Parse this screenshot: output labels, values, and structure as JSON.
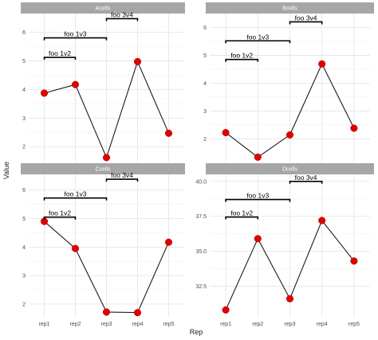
{
  "axes": {
    "xlabel": "Rep",
    "ylabel": "Value"
  },
  "chart_data": {
    "type": "line",
    "categories": [
      "rep1",
      "rep2",
      "rep3",
      "rep4",
      "rep5"
    ],
    "colors": {
      "point": "#e00000",
      "line": "#1a1a1a",
      "strip": "#a6a6a6",
      "bracket": "#000000"
    },
    "grid": true,
    "panels": [
      {
        "title": "Acells",
        "values": [
          3.87,
          4.17,
          1.62,
          4.97,
          2.47
        ],
        "ylim": [
          1.45,
          6.65
        ],
        "yticks": [
          2,
          3,
          4,
          5,
          6
        ],
        "ytick_labels": [
          "2",
          "3",
          "4",
          "5",
          "6"
        ],
        "brackets": [
          {
            "label": "foo 1v2",
            "from": "rep1",
            "to": "rep2",
            "y": 5.12
          },
          {
            "label": "foo 1v3",
            "from": "rep1",
            "to": "rep3",
            "y": 5.8
          },
          {
            "label": "foo 3v4",
            "from": "rep3",
            "to": "rep4",
            "y": 6.47
          }
        ]
      },
      {
        "title": "Bcells",
        "values": [
          2.22,
          1.34,
          2.14,
          4.69,
          2.38
        ],
        "ylim": [
          1.15,
          6.5
        ],
        "yticks": [
          2,
          3,
          4,
          5,
          6
        ],
        "ytick_labels": [
          "2",
          "3",
          "4",
          "5",
          "6"
        ],
        "brackets": [
          {
            "label": "foo 1v2",
            "from": "rep1",
            "to": "rep2",
            "y": 4.85
          },
          {
            "label": "foo 1v3",
            "from": "rep1",
            "to": "rep3",
            "y": 5.52
          },
          {
            "label": "foo 3v4",
            "from": "rep3",
            "to": "rep4",
            "y": 6.2
          }
        ]
      },
      {
        "title": "Ccells",
        "values": [
          4.9,
          3.95,
          1.72,
          1.7,
          4.17
        ],
        "ylim": [
          1.55,
          6.55
        ],
        "yticks": [
          2,
          3,
          4,
          5,
          6
        ],
        "ytick_labels": [
          "2",
          "3",
          "4",
          "5",
          "6"
        ],
        "brackets": [
          {
            "label": "foo 1v2",
            "from": "rep1",
            "to": "rep2",
            "y": 5.05
          },
          {
            "label": "foo 1v3",
            "from": "rep1",
            "to": "rep3",
            "y": 5.72
          },
          {
            "label": "foo 3v4",
            "from": "rep3",
            "to": "rep4",
            "y": 6.38
          }
        ]
      },
      {
        "title": "Dcells",
        "values": [
          30.8,
          35.9,
          31.6,
          37.2,
          34.3
        ],
        "ylim": [
          30.3,
          40.5
        ],
        "yticks": [
          32.5,
          35.0,
          37.5,
          40.0
        ],
        "ytick_labels": [
          "32.5",
          "35.0",
          "37.5",
          "40.0"
        ],
        "brackets": [
          {
            "label": "foo 1v2",
            "from": "rep1",
            "to": "rep2",
            "y": 37.45
          },
          {
            "label": "foo 1v3",
            "from": "rep1",
            "to": "rep3",
            "y": 38.7
          },
          {
            "label": "foo 3v4",
            "from": "rep3",
            "to": "rep4",
            "y": 40.0
          }
        ]
      }
    ]
  }
}
